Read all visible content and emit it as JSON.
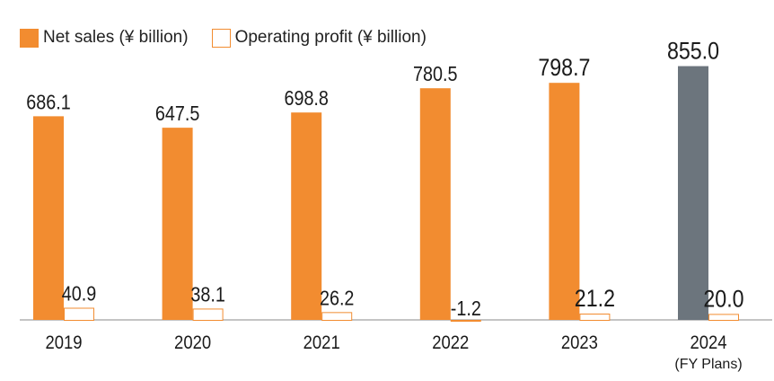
{
  "legend": {
    "net_sales": "Net sales (¥ billion)",
    "operating_profit": "Operating profit (¥ billion)"
  },
  "colors": {
    "net_sales": "#f28c30",
    "net_sales_plan": "#6c757d",
    "operating_profit_fill": "#ffffff",
    "operating_profit_border": "#f28c30"
  },
  "chart_data": {
    "type": "bar",
    "categories": [
      "2019",
      "2020",
      "2021",
      "2022",
      "2023",
      "2024"
    ],
    "category_sublabels": [
      "",
      "",
      "",
      "",
      "",
      "(FY Plans)"
    ],
    "series": [
      {
        "name": "Net sales (¥ billion)",
        "values": [
          686.1,
          647.5,
          698.8,
          780.5,
          798.7,
          855.0
        ]
      },
      {
        "name": "Operating profit (¥ billion)",
        "values": [
          40.9,
          38.1,
          26.2,
          -1.2,
          21.2,
          20.0
        ]
      }
    ],
    "value_labels": {
      "net_sales": [
        "686.1",
        "647.5",
        "698.8",
        "780.5",
        "798.7",
        "855.0"
      ],
      "operating_profit": [
        "40.9",
        "38.1",
        "26.2",
        "-1.2",
        "21.2",
        "20.0"
      ]
    },
    "notes": "Net sales and operating profit bars share a baseline; the 2024 net sales bar (FY Plans) is grey."
  }
}
